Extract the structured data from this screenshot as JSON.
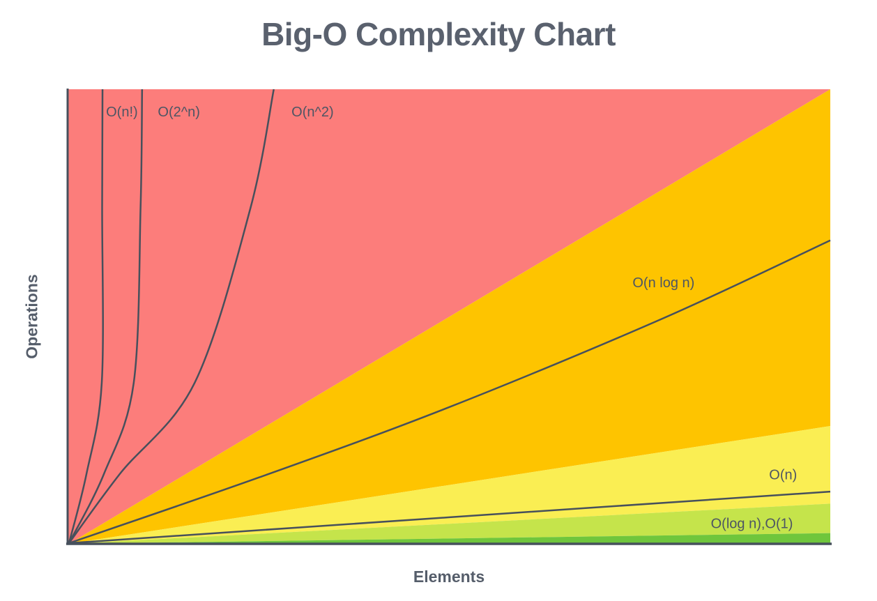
{
  "page": {
    "background": "#ffffff"
  },
  "colors": {
    "title_text": "#5a616e",
    "axis_label_text": "#555d6a",
    "curve_label_text": "#4d5564",
    "curve_line": "#47505c",
    "axis_line": "#47505c",
    "band_red": "#fc7d7b",
    "band_orange": "#fec400",
    "band_yellow": "#faee53",
    "band_light_green": "#c5e44b",
    "band_green": "#6fc63c"
  },
  "chart_data": {
    "type": "area",
    "title": "Big-O Complexity Chart",
    "xlabel": "Elements",
    "ylabel": "Operations",
    "grid": false,
    "legend": false,
    "ticks_visible": false,
    "bands": [
      {
        "name": "red",
        "color": "#fc7d7b",
        "right_edge_exit": 1.0
      },
      {
        "name": "orange",
        "color": "#fec400",
        "right_edge_exit": 0.258
      },
      {
        "name": "yellow",
        "color": "#faee53",
        "right_edge_exit": 0.087
      },
      {
        "name": "light-green",
        "color": "#c5e44b",
        "right_edge_exit": 0.022
      },
      {
        "name": "green",
        "color": "#6fc63c",
        "right_edge_exit": 0.0
      }
    ],
    "curves": [
      {
        "label": "O(n!)",
        "points": [
          [
            0,
            0
          ],
          [
            0.023,
            0.153
          ],
          [
            0.043,
            0.353
          ],
          [
            0.0435,
            0.74
          ],
          [
            0.044,
            1.0
          ]
        ],
        "label_pos": [
          0.0695,
          0.948
        ]
      },
      {
        "label": "O(2^n)",
        "points": [
          [
            0,
            0
          ],
          [
            0.046,
            0.153
          ],
          [
            0.085,
            0.353
          ],
          [
            0.094,
            0.74
          ],
          [
            0.096,
            1.0
          ]
        ],
        "label_pos": [
          0.1444,
          0.948
        ]
      },
      {
        "label": "O(n^2)",
        "points": [
          [
            0,
            0
          ],
          [
            0.067,
            0.153
          ],
          [
            0.165,
            0.353
          ],
          [
            0.238,
            0.736
          ],
          [
            0.269,
            1.0
          ]
        ],
        "label_pos": [
          0.32,
          0.948
        ]
      },
      {
        "label": "O(n log n)",
        "points": [
          [
            0,
            0
          ],
          [
            0.25,
            0.145
          ],
          [
            0.5,
            0.3
          ],
          [
            0.78,
            0.495
          ],
          [
            1,
            0.667
          ]
        ],
        "label_pos": [
          0.781,
          0.572
        ]
      },
      {
        "label": "O(n)",
        "points": [
          [
            0,
            0
          ],
          [
            0.5,
            0.057
          ],
          [
            1,
            0.1135
          ]
        ],
        "label_pos": [
          0.938,
          0.149
        ]
      }
    ],
    "extra_labels": [
      {
        "label": "O(log n),O(1)",
        "label_pos": [
          0.897,
          0.041
        ]
      }
    ]
  }
}
